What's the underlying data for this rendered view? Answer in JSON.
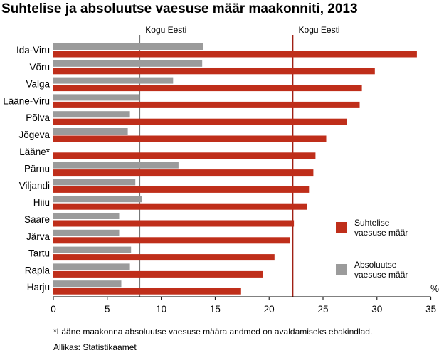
{
  "chart_data": {
    "type": "bar",
    "orientation": "horizontal",
    "title": "Suhtelise ja absoluutse vaesuse määr maakonniti, 2013",
    "unit_label": "%",
    "categories": [
      "Ida-Viru",
      "Võru",
      "Valga",
      "Lääne-Viru",
      "Põlva",
      "Jõgeva",
      "Lääne*",
      "Pärnu",
      "Viljandi",
      "Hiiu",
      "Saare",
      "Järva",
      "Tartu",
      "Rapla",
      "Harju"
    ],
    "series": [
      {
        "name": "Absoluutse vaesuse määr",
        "line1": "Absoluutse",
        "line2": "vaesuse määr",
        "color": "#9b9b9b",
        "values": [
          13.9,
          13.8,
          11.1,
          8.0,
          7.1,
          6.9,
          null,
          11.6,
          7.6,
          8.2,
          6.1,
          6.1,
          7.2,
          7.1,
          6.3
        ]
      },
      {
        "name": "Suhtelise vaesuse määr",
        "line1": "Suhtelise",
        "line2": "vaesuse määr",
        "color": "#bf2e1a",
        "values": [
          33.7,
          29.8,
          28.6,
          28.4,
          27.2,
          25.3,
          24.3,
          24.1,
          23.7,
          23.5,
          22.3,
          21.9,
          20.5,
          19.4,
          17.4
        ]
      }
    ],
    "reference_lines": [
      {
        "label": "Kogu Eesti",
        "value": 8.0,
        "color": "#777777"
      },
      {
        "label": "Kogu Eesti",
        "value": 22.2,
        "color": "#a02014"
      }
    ],
    "xlim": [
      0,
      35
    ],
    "xticks": [
      0,
      5,
      10,
      15,
      20,
      25,
      30,
      35
    ],
    "grid": false,
    "legend_position": "right"
  },
  "footnote": "*Lääne maakonna absoluutse vaesuse määra andmed on avaldamiseks ebakindlad.",
  "source": "Allikas: Statistikaamet"
}
